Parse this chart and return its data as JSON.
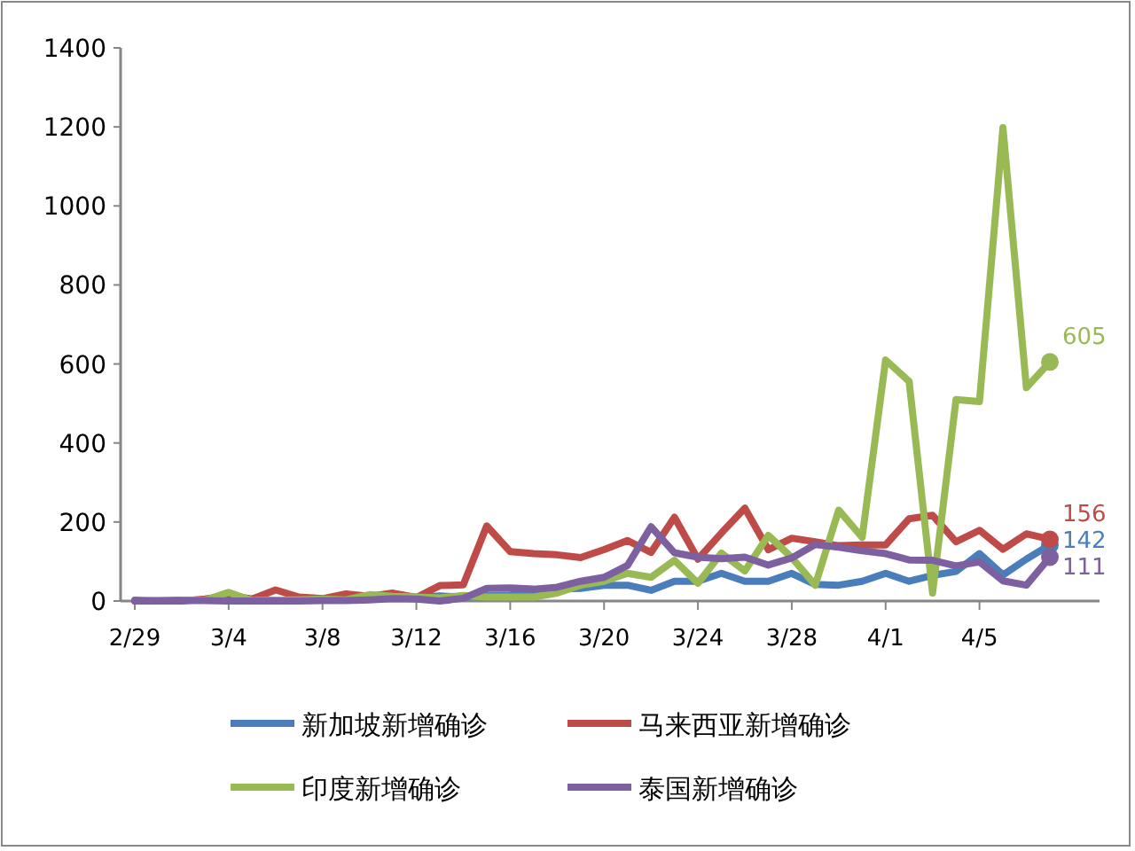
{
  "chart_data": {
    "type": "line",
    "categories": [
      "2/29",
      null,
      null,
      null,
      "3/4",
      null,
      null,
      null,
      "3/8",
      null,
      null,
      null,
      "3/12",
      null,
      null,
      null,
      "3/16",
      null,
      null,
      null,
      "3/20",
      null,
      null,
      null,
      "3/24",
      null,
      null,
      null,
      "3/28",
      null,
      null,
      null,
      "4/1",
      null,
      null,
      null,
      "4/5",
      null,
      null,
      null
    ],
    "ylim": [
      0,
      1400
    ],
    "yticks": [
      0,
      200,
      400,
      600,
      800,
      1000,
      1200,
      1400
    ],
    "legend": "bottom",
    "grid": false,
    "series": [
      {
        "name": "新加坡新增确诊",
        "color": "#4a7ebb",
        "values": [
          2,
          0,
          2,
          2,
          2,
          3,
          2,
          2,
          3,
          2,
          10,
          12,
          9,
          13,
          10,
          14,
          15,
          23,
          30,
          32,
          40,
          40,
          27,
          50,
          50,
          70,
          50,
          50,
          70,
          42,
          40,
          50,
          70,
          50,
          65,
          75,
          120,
          66,
          106,
          142
        ],
        "value_labels": [
          null,
          null,
          null,
          null,
          null,
          null,
          null,
          null,
          null,
          null,
          null,
          null,
          null,
          null,
          null,
          null,
          null,
          null,
          null,
          null,
          null,
          null,
          null,
          null,
          null,
          null,
          null,
          null,
          null,
          null,
          null,
          null,
          null,
          null,
          null,
          null,
          null,
          null,
          null,
          "142"
        ]
      },
      {
        "name": "马来西亚新增确诊",
        "color": "#be4b48",
        "values": [
          0,
          0,
          0,
          5,
          14,
          5,
          28,
          10,
          6,
          18,
          12,
          20,
          9,
          39,
          41,
          190,
          125,
          120,
          117,
          110,
          130,
          153,
          123,
          212,
          106,
          172,
          235,
          130,
          159,
          150,
          140,
          142,
          142,
          208,
          217,
          150,
          179,
          131,
          170,
          156
        ],
        "value_labels": [
          null,
          null,
          null,
          null,
          null,
          null,
          null,
          null,
          null,
          null,
          null,
          null,
          null,
          null,
          null,
          null,
          null,
          null,
          null,
          null,
          null,
          null,
          null,
          null,
          null,
          null,
          null,
          null,
          null,
          null,
          null,
          null,
          null,
          null,
          null,
          null,
          null,
          null,
          null,
          "156"
        ]
      },
      {
        "name": "印度新增确诊",
        "color": "#98b954",
        "values": [
          null,
          null,
          2,
          2,
          22,
          1,
          2,
          3,
          5,
          3,
          16,
          12,
          10,
          8,
          14,
          10,
          10,
          10,
          20,
          40,
          50,
          70,
          60,
          103,
          45,
          121,
          76,
          166,
          110,
          40,
          230,
          161,
          610,
          556,
          20,
          510,
          505,
          1198,
          540,
          605
        ],
        "value_labels": [
          null,
          null,
          null,
          null,
          null,
          null,
          null,
          null,
          null,
          null,
          null,
          null,
          null,
          null,
          null,
          null,
          null,
          null,
          null,
          null,
          null,
          null,
          null,
          null,
          null,
          null,
          null,
          null,
          null,
          null,
          null,
          null,
          null,
          null,
          null,
          null,
          null,
          null,
          null,
          "605"
        ]
      },
      {
        "name": "泰国新增确诊",
        "color": "#7d60a0",
        "values": [
          0,
          1,
          1,
          1,
          0,
          0,
          0,
          0,
          1,
          1,
          3,
          6,
          5,
          0,
          7,
          32,
          33,
          30,
          35,
          50,
          60,
          90,
          188,
          122,
          111,
          107,
          111,
          91,
          109,
          143,
          136,
          127,
          120,
          104,
          103,
          89,
          99,
          51,
          40,
          111
        ],
        "value_labels": [
          null,
          null,
          null,
          null,
          null,
          null,
          null,
          null,
          null,
          null,
          null,
          null,
          null,
          null,
          null,
          null,
          null,
          null,
          null,
          null,
          null,
          null,
          null,
          null,
          null,
          null,
          null,
          null,
          null,
          null,
          null,
          null,
          null,
          null,
          null,
          null,
          null,
          null,
          null,
          "111"
        ]
      }
    ]
  }
}
